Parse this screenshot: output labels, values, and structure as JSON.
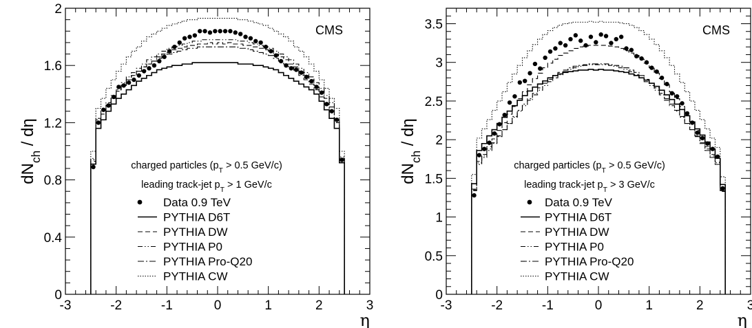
{
  "chart_data": [
    {
      "type": "line",
      "tag": "CMS",
      "xlabel": "η",
      "ylabel": "dN_ch / dη",
      "xlim": [
        -3,
        3
      ],
      "ylim": [
        0,
        2
      ],
      "xticks": [
        "-3",
        "-2",
        "-1",
        "0",
        "1",
        "2",
        "3"
      ],
      "yticks": [
        "0",
        "0.4",
        "0.8",
        "1.2",
        "1.6",
        "2"
      ],
      "ytick_values": [
        0,
        0.4,
        0.8,
        1.2,
        1.6,
        2
      ],
      "annotation_lines": [
        "charged particles (p_T > 0.5 GeV/c)",
        "leading track-jet p_T > 1 GeV/c"
      ],
      "legend": [
        "Data 0.9 TeV",
        "PYTHIA D6T",
        "PYTHIA DW",
        "PYTHIA P0",
        "PYTHIA Pro-Q20",
        "PYTHIA CW"
      ],
      "x": [
        -2.45,
        -2.35,
        -2.25,
        -2.15,
        -2.05,
        -1.95,
        -1.85,
        -1.75,
        -1.65,
        -1.55,
        -1.45,
        -1.35,
        -1.25,
        -1.15,
        -1.05,
        -0.95,
        -0.85,
        -0.75,
        -0.65,
        -0.55,
        -0.45,
        -0.35,
        -0.25,
        -0.15,
        -0.05,
        0.05,
        0.15,
        0.25,
        0.35,
        0.45,
        0.55,
        0.65,
        0.75,
        0.85,
        0.95,
        1.05,
        1.15,
        1.25,
        1.35,
        1.45,
        1.55,
        1.65,
        1.75,
        1.85,
        1.95,
        2.05,
        2.15,
        2.25,
        2.35,
        2.45
      ],
      "series": [
        {
          "name": "Data 0.9 TeV",
          "style": "markers",
          "values": [
            0.89,
            1.2,
            1.29,
            1.32,
            1.38,
            1.45,
            1.46,
            1.48,
            1.5,
            1.53,
            1.56,
            1.58,
            1.6,
            1.63,
            1.66,
            1.7,
            1.73,
            1.76,
            1.79,
            1.8,
            1.81,
            1.84,
            1.84,
            1.83,
            1.84,
            1.84,
            1.84,
            1.84,
            1.83,
            1.82,
            1.8,
            1.79,
            1.77,
            1.76,
            1.73,
            1.7,
            1.67,
            1.63,
            1.6,
            1.58,
            1.57,
            1.55,
            1.52,
            1.49,
            1.45,
            1.41,
            1.33,
            1.28,
            1.22,
            0.94
          ]
        },
        {
          "name": "PYTHIA D6T",
          "style": "solid",
          "values": [
            0.91,
            1.16,
            1.22,
            1.28,
            1.33,
            1.37,
            1.4,
            1.43,
            1.46,
            1.49,
            1.51,
            1.53,
            1.55,
            1.57,
            1.58,
            1.59,
            1.6,
            1.6,
            1.61,
            1.61,
            1.62,
            1.62,
            1.62,
            1.62,
            1.62,
            1.62,
            1.62,
            1.62,
            1.62,
            1.61,
            1.61,
            1.61,
            1.6,
            1.6,
            1.59,
            1.58,
            1.57,
            1.55,
            1.53,
            1.51,
            1.49,
            1.47,
            1.45,
            1.43,
            1.4,
            1.35,
            1.29,
            1.23,
            1.16,
            0.92
          ]
        },
        {
          "name": "PYTHIA DW",
          "style": "dashed",
          "values": [
            0.93,
            1.2,
            1.26,
            1.32,
            1.37,
            1.42,
            1.46,
            1.5,
            1.53,
            1.56,
            1.59,
            1.61,
            1.63,
            1.66,
            1.68,
            1.69,
            1.71,
            1.72,
            1.73,
            1.74,
            1.74,
            1.75,
            1.75,
            1.76,
            1.75,
            1.76,
            1.75,
            1.76,
            1.75,
            1.75,
            1.74,
            1.74,
            1.73,
            1.72,
            1.71,
            1.7,
            1.68,
            1.66,
            1.64,
            1.61,
            1.59,
            1.56,
            1.53,
            1.5,
            1.46,
            1.42,
            1.37,
            1.31,
            1.2,
            0.94
          ]
        },
        {
          "name": "PYTHIA P0",
          "style": "dashdotdot",
          "values": [
            0.95,
            1.23,
            1.29,
            1.34,
            1.39,
            1.44,
            1.48,
            1.52,
            1.55,
            1.58,
            1.61,
            1.64,
            1.66,
            1.68,
            1.7,
            1.72,
            1.73,
            1.74,
            1.75,
            1.76,
            1.77,
            1.77,
            1.78,
            1.78,
            1.78,
            1.78,
            1.78,
            1.78,
            1.78,
            1.77,
            1.77,
            1.76,
            1.75,
            1.74,
            1.73,
            1.72,
            1.7,
            1.68,
            1.66,
            1.64,
            1.61,
            1.58,
            1.55,
            1.52,
            1.48,
            1.44,
            1.39,
            1.34,
            1.23,
            0.96
          ]
        },
        {
          "name": "PYTHIA Pro-Q20",
          "style": "dashdot",
          "values": [
            0.94,
            1.22,
            1.28,
            1.33,
            1.38,
            1.43,
            1.47,
            1.5,
            1.53,
            1.56,
            1.59,
            1.61,
            1.63,
            1.65,
            1.67,
            1.68,
            1.69,
            1.7,
            1.71,
            1.72,
            1.72,
            1.73,
            1.73,
            1.73,
            1.73,
            1.73,
            1.73,
            1.73,
            1.73,
            1.72,
            1.72,
            1.71,
            1.7,
            1.69,
            1.68,
            1.67,
            1.65,
            1.63,
            1.61,
            1.59,
            1.56,
            1.53,
            1.5,
            1.47,
            1.43,
            1.38,
            1.33,
            1.28,
            1.22,
            0.95
          ]
        },
        {
          "name": "PYTHIA CW",
          "style": "dotted",
          "values": [
            1.0,
            1.3,
            1.37,
            1.44,
            1.5,
            1.56,
            1.61,
            1.66,
            1.7,
            1.73,
            1.77,
            1.8,
            1.82,
            1.84,
            1.86,
            1.88,
            1.89,
            1.9,
            1.91,
            1.92,
            1.92,
            1.93,
            1.93,
            1.93,
            1.93,
            1.93,
            1.93,
            1.93,
            1.93,
            1.92,
            1.92,
            1.91,
            1.9,
            1.89,
            1.88,
            1.86,
            1.84,
            1.82,
            1.8,
            1.77,
            1.73,
            1.7,
            1.66,
            1.61,
            1.56,
            1.5,
            1.44,
            1.37,
            1.3,
            1.0
          ]
        }
      ]
    },
    {
      "type": "line",
      "tag": "CMS",
      "xlabel": "η",
      "ylabel": "dN_ch / dη",
      "xlim": [
        -3,
        3
      ],
      "ylim": [
        0,
        3.7
      ],
      "xticks": [
        "-3",
        "-2",
        "-1",
        "0",
        "1",
        "2",
        "3"
      ],
      "yticks": [
        "0",
        "0.5",
        "1",
        "1.5",
        "2",
        "2.5",
        "3",
        "3.5"
      ],
      "ytick_values": [
        0,
        0.5,
        1,
        1.5,
        2,
        2.5,
        3,
        3.5
      ],
      "annotation_lines": [
        "charged particles (p_T > 0.5 GeV/c)",
        "leading track-jet p_T > 3 GeV/c"
      ],
      "legend": [
        "Data 0.9 TeV",
        "PYTHIA D6T",
        "PYTHIA DW",
        "PYTHIA P0",
        "PYTHIA Pro-Q20",
        "PYTHIA CW"
      ],
      "x": [
        -2.45,
        -2.35,
        -2.25,
        -2.15,
        -2.05,
        -1.95,
        -1.85,
        -1.75,
        -1.65,
        -1.55,
        -1.45,
        -1.35,
        -1.25,
        -1.15,
        -1.05,
        -0.95,
        -0.85,
        -0.75,
        -0.65,
        -0.55,
        -0.45,
        -0.35,
        -0.25,
        -0.15,
        -0.05,
        0.05,
        0.15,
        0.25,
        0.35,
        0.45,
        0.55,
        0.65,
        0.75,
        0.85,
        0.95,
        1.05,
        1.15,
        1.25,
        1.35,
        1.45,
        1.55,
        1.65,
        1.75,
        1.85,
        1.95,
        2.05,
        2.15,
        2.25,
        2.35,
        2.45
      ],
      "series": [
        {
          "name": "Data 0.9 TeV",
          "style": "markers",
          "values": [
            1.28,
            1.8,
            1.88,
            1.96,
            2.08,
            2.2,
            2.32,
            2.48,
            2.56,
            2.74,
            2.76,
            2.86,
            2.98,
            2.92,
            3.06,
            3.14,
            3.18,
            3.25,
            3.22,
            3.3,
            3.35,
            3.28,
            3.22,
            3.33,
            3.26,
            3.36,
            3.34,
            3.25,
            3.3,
            3.33,
            3.18,
            3.16,
            3.08,
            3.05,
            3.0,
            2.93,
            2.88,
            2.8,
            2.72,
            2.6,
            2.56,
            2.47,
            2.34,
            2.22,
            2.09,
            2.02,
            1.95,
            1.88,
            1.78,
            1.37
          ]
        },
        {
          "name": "PYTHIA D6T",
          "style": "solid",
          "values": [
            1.43,
            1.86,
            1.95,
            2.05,
            2.13,
            2.21,
            2.29,
            2.37,
            2.44,
            2.51,
            2.57,
            2.63,
            2.68,
            2.72,
            2.76,
            2.8,
            2.83,
            2.85,
            2.87,
            2.88,
            2.89,
            2.9,
            2.9,
            2.91,
            2.9,
            2.91,
            2.9,
            2.9,
            2.89,
            2.88,
            2.87,
            2.85,
            2.83,
            2.8,
            2.77,
            2.73,
            2.69,
            2.64,
            2.58,
            2.52,
            2.46,
            2.39,
            2.31,
            2.23,
            2.14,
            2.06,
            1.97,
            1.88,
            1.76,
            1.42
          ]
        },
        {
          "name": "PYTHIA DW",
          "style": "dashed",
          "values": [
            1.35,
            1.72,
            1.81,
            1.91,
            2.01,
            2.12,
            2.22,
            2.33,
            2.43,
            2.53,
            2.62,
            2.71,
            2.79,
            2.86,
            2.93,
            2.99,
            3.04,
            3.09,
            3.12,
            3.15,
            3.18,
            3.2,
            3.21,
            3.22,
            3.22,
            3.22,
            3.22,
            3.21,
            3.2,
            3.18,
            3.15,
            3.12,
            3.09,
            3.04,
            2.99,
            2.93,
            2.86,
            2.79,
            2.71,
            2.62,
            2.53,
            2.43,
            2.33,
            2.22,
            2.12,
            2.01,
            1.91,
            1.81,
            1.71,
            1.34
          ]
        },
        {
          "name": "PYTHIA P0",
          "style": "dashdotdot",
          "values": [
            1.36,
            1.7,
            1.79,
            1.88,
            1.96,
            2.05,
            2.13,
            2.21,
            2.29,
            2.37,
            2.44,
            2.51,
            2.58,
            2.64,
            2.7,
            2.75,
            2.8,
            2.84,
            2.88,
            2.91,
            2.93,
            2.95,
            2.96,
            2.97,
            2.97,
            2.97,
            2.97,
            2.96,
            2.95,
            2.93,
            2.91,
            2.88,
            2.84,
            2.8,
            2.75,
            2.7,
            2.64,
            2.58,
            2.51,
            2.44,
            2.37,
            2.29,
            2.21,
            2.13,
            2.05,
            1.96,
            1.88,
            1.79,
            1.7,
            1.35
          ]
        },
        {
          "name": "PYTHIA Pro-Q20",
          "style": "dashdot",
          "values": [
            1.34,
            1.68,
            1.77,
            1.86,
            1.95,
            2.04,
            2.13,
            2.21,
            2.3,
            2.38,
            2.46,
            2.53,
            2.6,
            2.67,
            2.73,
            2.78,
            2.83,
            2.87,
            2.9,
            2.93,
            2.95,
            2.96,
            2.97,
            2.98,
            2.98,
            2.98,
            2.98,
            2.97,
            2.96,
            2.95,
            2.93,
            2.9,
            2.87,
            2.83,
            2.78,
            2.73,
            2.67,
            2.6,
            2.53,
            2.46,
            2.38,
            2.3,
            2.21,
            2.13,
            2.04,
            1.95,
            1.86,
            1.77,
            1.68,
            1.33
          ]
        },
        {
          "name": "PYTHIA CW",
          "style": "dotted",
          "values": [
            1.55,
            2.02,
            2.14,
            2.26,
            2.38,
            2.5,
            2.62,
            2.74,
            2.85,
            2.96,
            3.06,
            3.15,
            3.23,
            3.3,
            3.36,
            3.41,
            3.45,
            3.48,
            3.5,
            3.51,
            3.52,
            3.52,
            3.52,
            3.53,
            3.52,
            3.53,
            3.52,
            3.52,
            3.52,
            3.51,
            3.5,
            3.48,
            3.45,
            3.41,
            3.36,
            3.3,
            3.23,
            3.15,
            3.06,
            2.96,
            2.85,
            2.74,
            2.62,
            2.5,
            2.38,
            2.26,
            2.14,
            2.02,
            1.9,
            1.52
          ]
        }
      ]
    }
  ]
}
